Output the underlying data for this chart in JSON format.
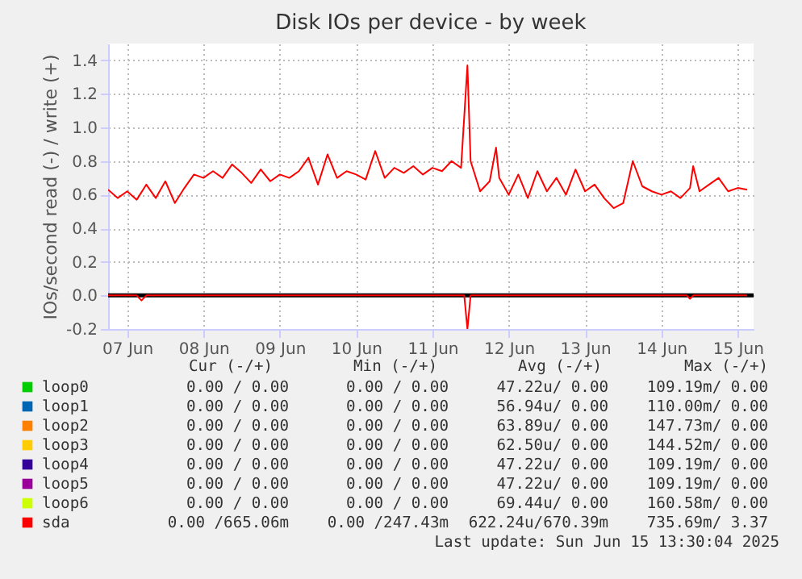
{
  "chart_data": {
    "type": "line",
    "title": "Disk IOs per device - by week",
    "ylabel": "IOs/second read (-) / write (+)",
    "xlim": [
      "2025-06-07T06:00",
      "2025-06-15T17:00"
    ],
    "xticks": [
      {
        "value": "2025-06-07T12:00",
        "label": "07 Jun"
      },
      {
        "value": "2025-06-08T12:00",
        "label": "08 Jun"
      },
      {
        "value": "2025-06-09T12:00",
        "label": "09 Jun"
      },
      {
        "value": "2025-06-10T12:00",
        "label": "10 Jun"
      },
      {
        "value": "2025-06-11T12:00",
        "label": "11 Jun"
      },
      {
        "value": "2025-06-12T12:00",
        "label": "12 Jun"
      },
      {
        "value": "2025-06-13T12:00",
        "label": "13 Jun"
      },
      {
        "value": "2025-06-14T12:00",
        "label": "14 Jun"
      },
      {
        "value": "2025-06-15T12:00",
        "label": "15 Jun"
      }
    ],
    "ylim": [
      -0.2,
      1.5
    ],
    "yticks": [
      {
        "value": -0.2,
        "label": "-0.2"
      },
      {
        "value": 0,
        "label": "0.0"
      },
      0.2,
      0.4,
      0.6,
      0.8,
      {
        "value": 1,
        "label": "1.0"
      },
      1.2,
      1.4
    ],
    "grid": true,
    "legend": "bottom",
    "ref_lines": [
      {
        "axis": "y",
        "value": 0,
        "color": "#000000"
      }
    ],
    "series": [
      {
        "name": "loop0",
        "color": "#00cc00"
      },
      {
        "name": "loop1",
        "color": "#0066b3"
      },
      {
        "name": "loop2",
        "color": "#ff8000"
      },
      {
        "name": "loop3",
        "color": "#ffcc00"
      },
      {
        "name": "loop4",
        "color": "#330099"
      },
      {
        "name": "loop5",
        "color": "#990099"
      },
      {
        "name": "loop6",
        "color": "#ccff00"
      },
      {
        "name": "sda",
        "color": "#ff0000",
        "x": [
          "2025-06-07T06:00",
          "2025-06-07T09:00",
          "2025-06-07T12:00",
          "2025-06-07T15:00",
          "2025-06-07T18:00",
          "2025-06-07T21:00",
          "2025-06-08T00:00",
          "2025-06-08T03:00",
          "2025-06-08T06:00",
          "2025-06-08T09:00",
          "2025-06-08T12:00",
          "2025-06-08T15:00",
          "2025-06-08T18:00",
          "2025-06-08T21:00",
          "2025-06-09T00:00",
          "2025-06-09T03:00",
          "2025-06-09T06:00",
          "2025-06-09T09:00",
          "2025-06-09T12:00",
          "2025-06-09T15:00",
          "2025-06-09T18:00",
          "2025-06-09T21:00",
          "2025-06-10T00:00",
          "2025-06-10T03:00",
          "2025-06-10T06:00",
          "2025-06-10T09:00",
          "2025-06-10T12:00",
          "2025-06-10T15:00",
          "2025-06-10T18:00",
          "2025-06-10T21:00",
          "2025-06-11T00:00",
          "2025-06-11T03:00",
          "2025-06-11T06:00",
          "2025-06-11T09:00",
          "2025-06-11T12:00",
          "2025-06-11T15:00",
          "2025-06-11T18:00",
          "2025-06-11T21:00",
          "2025-06-11T23:00",
          "2025-06-12T00:00",
          "2025-06-12T03:00",
          "2025-06-12T06:00",
          "2025-06-12T08:00",
          "2025-06-12T09:00",
          "2025-06-12T12:00",
          "2025-06-12T15:00",
          "2025-06-12T18:00",
          "2025-06-12T21:00",
          "2025-06-13T00:00",
          "2025-06-13T03:00",
          "2025-06-13T06:00",
          "2025-06-13T09:00",
          "2025-06-13T12:00",
          "2025-06-13T15:00",
          "2025-06-13T18:00",
          "2025-06-13T21:00",
          "2025-06-14T00:00",
          "2025-06-14T03:00",
          "2025-06-14T06:00",
          "2025-06-14T09:00",
          "2025-06-14T12:00",
          "2025-06-14T15:00",
          "2025-06-14T18:00",
          "2025-06-14T21:00",
          "2025-06-14T22:00",
          "2025-06-15T00:00",
          "2025-06-15T03:00",
          "2025-06-15T06:00",
          "2025-06-15T09:00",
          "2025-06-15T12:00",
          "2025-06-15T15:00"
        ],
        "values": [
          0.63,
          0.58,
          0.62,
          0.57,
          0.66,
          0.58,
          0.68,
          0.55,
          0.64,
          0.72,
          0.7,
          0.74,
          0.7,
          0.78,
          0.73,
          0.67,
          0.75,
          0.68,
          0.72,
          0.7,
          0.74,
          0.82,
          0.66,
          0.84,
          0.7,
          0.74,
          0.72,
          0.69,
          0.86,
          0.7,
          0.76,
          0.73,
          0.77,
          0.72,
          0.76,
          0.74,
          0.8,
          0.76,
          1.37,
          0.8,
          0.62,
          0.68,
          0.88,
          0.7,
          0.6,
          0.72,
          0.58,
          0.74,
          0.62,
          0.7,
          0.6,
          0.75,
          0.62,
          0.66,
          0.58,
          0.52,
          0.55,
          0.8,
          0.65,
          0.62,
          0.6,
          0.62,
          0.58,
          0.64,
          0.77,
          0.62,
          0.66,
          0.7,
          0.62,
          0.64,
          0.63
        ]
      },
      {
        "color": "#ff0000",
        "x": [
          "2025-06-07T06:00",
          "2025-06-07T15:00",
          "2025-06-07T16:30",
          "2025-06-07T18:00",
          "2025-06-11T22:00",
          "2025-06-11T23:00",
          "2025-06-12T00:00",
          "2025-06-14T20:00",
          "2025-06-14T21:00",
          "2025-06-14T22:00",
          "2025-06-15T15:00"
        ],
        "values": [
          0,
          0,
          -0.03,
          0,
          0,
          -0.2,
          0,
          0,
          -0.02,
          0,
          0
        ]
      }
    ],
    "annotations": [
      "Cur (-/+)",
      "Min (-/+)",
      "Avg (-/+)",
      "Max (-/+)",
      "0.00 /  0.00",
      "0.00 /  0.00",
      "47.22u/  0.00",
      "109.19m/  0.00",
      "0.00 /  0.00",
      "0.00 /  0.00",
      "56.94u/  0.00",
      "110.00m/  0.00",
      "0.00 /  0.00",
      "0.00 /  0.00",
      "63.89u/  0.00",
      "147.73m/  0.00",
      "0.00 /  0.00",
      "0.00 /  0.00",
      "62.50u/  0.00",
      "144.52m/  0.00",
      "0.00 /  0.00",
      "0.00 /  0.00",
      "47.22u/  0.00",
      "109.19m/  0.00",
      "0.00 /  0.00",
      "0.00 /  0.00",
      "47.22u/  0.00",
      "109.19m/  0.00",
      "0.00 /  0.00",
      "0.00 /  0.00",
      "69.44u/  0.00",
      "160.58m/  0.00",
      "0.00 /665.06m",
      "0.00 /247.43m",
      "622.24u/670.39m",
      "735.69m/  3.37",
      "Last update: Sun Jun 15 13:30:04 2025"
    ]
  }
}
